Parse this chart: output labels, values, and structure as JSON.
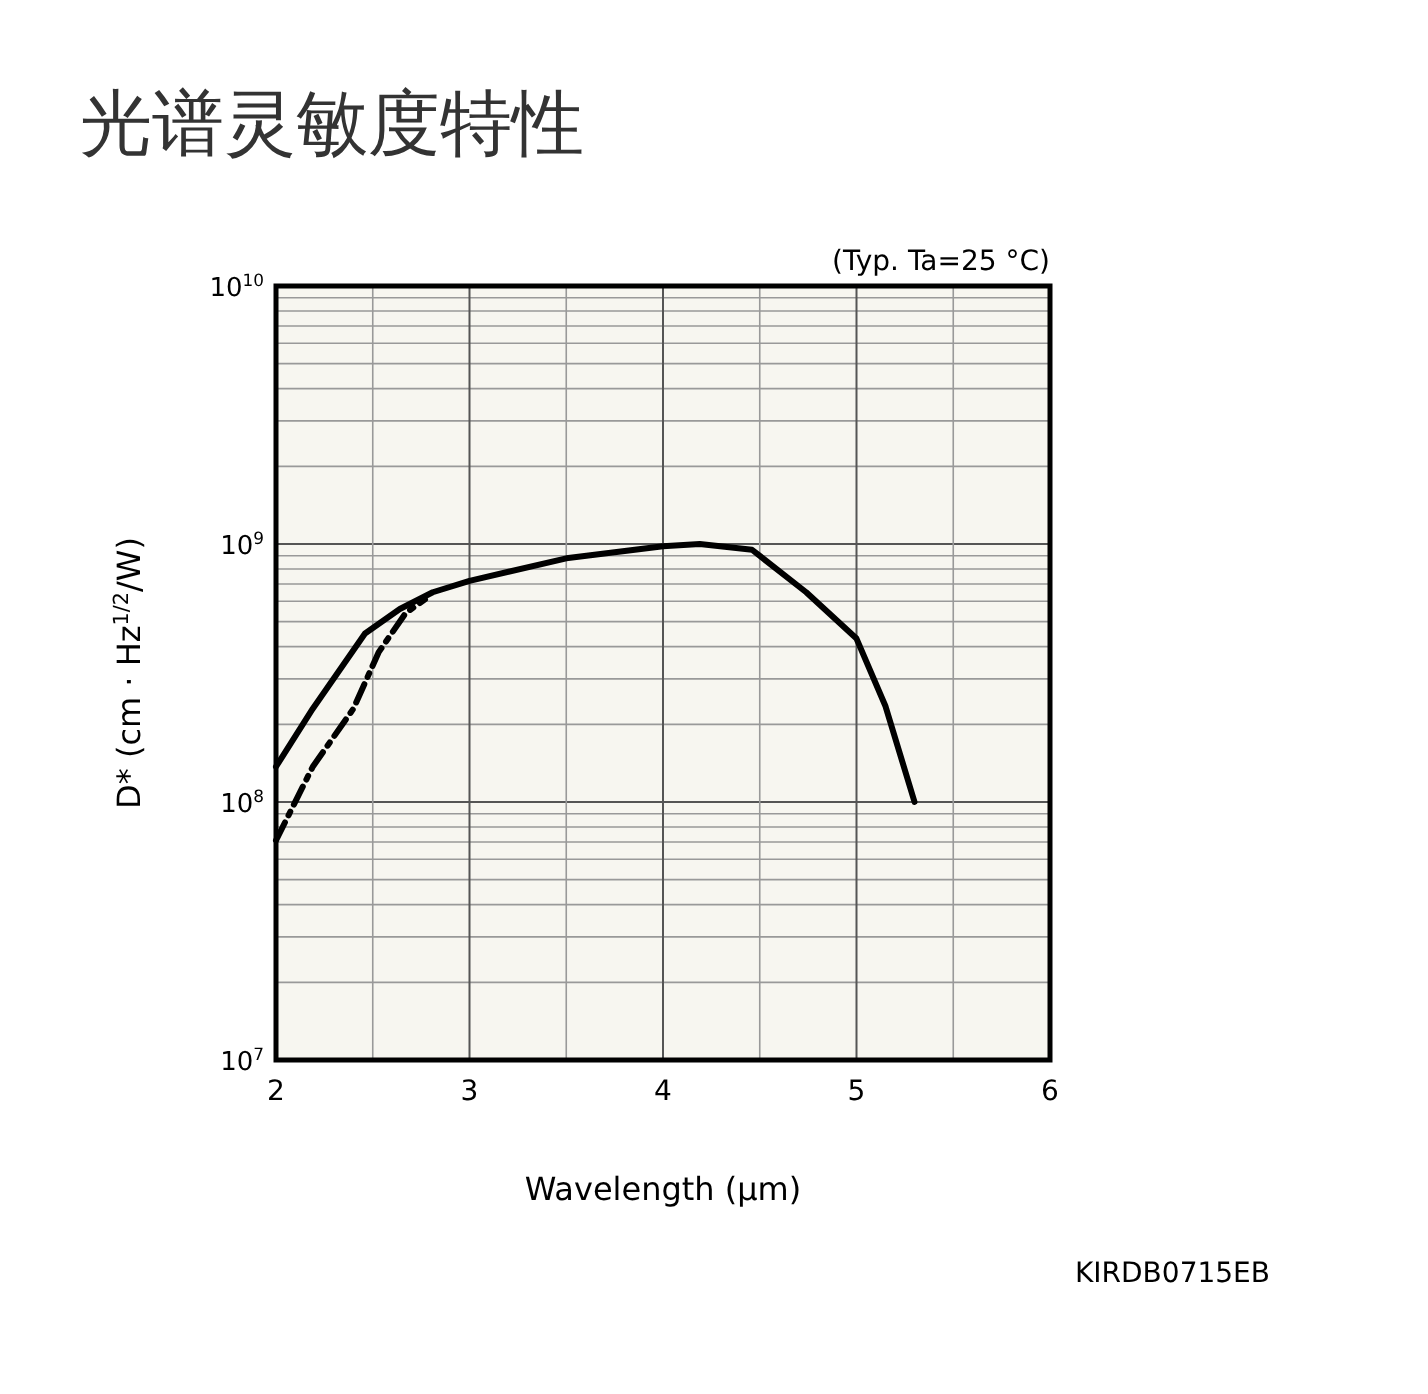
{
  "chart_data": {
    "type": "line",
    "title": "光谱灵敏度特性",
    "xlabel": "Wavelength (μm)",
    "ylabel": "D* (cm · Hz$^{1/2}$/W)",
    "annotations": [
      "(Typ. Ta=25 °C)",
      "KIRDB0715EB"
    ],
    "xlim": [
      2,
      6
    ],
    "xticks": [
      2,
      3,
      4,
      5,
      6
    ],
    "ylim": [
      10000000,
      10000000000
    ],
    "log": true,
    "yticks": [
      {
        "value": 10000000,
        "label": "10$^{7}$"
      },
      {
        "value": 100000000,
        "label": "10$^{8}$"
      },
      {
        "value": 1000000000,
        "label": "10$^{9}$"
      },
      {
        "value": 10000000000,
        "label": "10$^{10}$"
      }
    ],
    "grid": true,
    "series": [
      {
        "color": "#000000",
        "line_style": "solid",
        "x": [
          2.0,
          2.19,
          2.46,
          2.64,
          2.81,
          3.0,
          3.5,
          4.0,
          4.19,
          4.46,
          4.74,
          5.0,
          5.15,
          5.3
        ],
        "values": [
          137000000,
          230000000,
          450000000,
          560000000,
          650000000,
          720000000,
          880000000,
          980000000,
          1000000000,
          950000000,
          650000000,
          430000000,
          235000000,
          100000000
        ]
      },
      {
        "color": "#000000",
        "line_style": "dashed",
        "x": [
          2.0,
          2.19,
          2.4,
          2.53,
          2.67,
          2.77
        ],
        "values": [
          71000000,
          137000000,
          230000000,
          380000000,
          540000000,
          610000000
        ]
      }
    ]
  }
}
